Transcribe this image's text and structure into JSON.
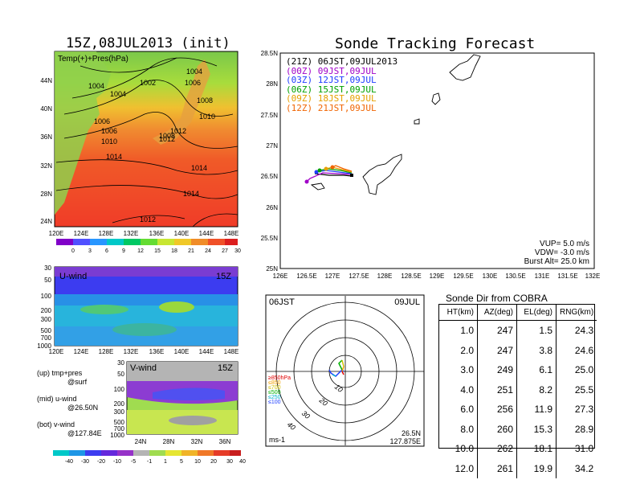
{
  "map_panel": {
    "title": "15Z,08JUL2013 (init)",
    "label": "Temp(+)+Pres(hPa)",
    "lat_ticks": [
      "44N",
      "40N",
      "36N",
      "32N",
      "28N",
      "24N"
    ],
    "lon_ticks": [
      "120E",
      "124E",
      "128E",
      "132E",
      "136E",
      "140E",
      "144E",
      "148E"
    ],
    "colorbar_ticks": [
      "0",
      "3",
      "6",
      "9",
      "12",
      "15",
      "18",
      "21",
      "24",
      "27",
      "30"
    ],
    "pressure_labels": [
      "1004",
      "1006",
      "1002",
      "1004",
      "1004",
      "1006",
      "1008",
      "1006",
      "1010",
      "1008",
      "1010",
      "1012",
      "1012",
      "1014",
      "1014",
      "1014",
      "1012"
    ]
  },
  "u_panel": {
    "label": "U-wind",
    "time": "15Z",
    "y_ticks": [
      "30",
      "50",
      "100",
      "200",
      "300",
      "500",
      "700",
      "1000"
    ],
    "x_ticks": [
      "120E",
      "124E",
      "128E",
      "132E",
      "136E",
      "140E",
      "144E",
      "148E"
    ]
  },
  "v_panel": {
    "label": "V-wind",
    "time": "15Z",
    "y_ticks": [
      "30",
      "50",
      "100",
      "200",
      "300",
      "500",
      "700",
      "1000"
    ],
    "x_ticks": [
      "24N",
      "28N",
      "32N",
      "36N"
    ],
    "colorbar_ticks": [
      "-40",
      "-30",
      "-20",
      "-10",
      "-5",
      "-1",
      "1",
      "5",
      "10",
      "20",
      "30",
      "40"
    ]
  },
  "legend_text": {
    "up": "(up) tmp+pres",
    "up2": "@surf",
    "mid": "(mid) u-wind",
    "mid2": "@26.50N",
    "bot": "(bot) v-wind",
    "bot2": "@127.84E"
  },
  "track_panel": {
    "title": "Sonde Tracking Forecast",
    "lat_ticks": [
      "28.5N",
      "28N",
      "27.5N",
      "27N",
      "26.5N",
      "26N",
      "25.5N",
      "25N"
    ],
    "lon_ticks": [
      "126E",
      "126.5E",
      "127E",
      "127.5E",
      "128E",
      "128.5E",
      "129E",
      "129.5E",
      "130E",
      "130.5E",
      "131E",
      "131.5E",
      "132E"
    ],
    "legend": [
      {
        "label": "(21Z) 06JST,09JUL2013",
        "color": "#000000"
      },
      {
        "label": "(00Z) 09JST,09JUL",
        "color": "#a000c8"
      },
      {
        "label": "(03Z) 12JST,09JUL",
        "color": "#1e3cff"
      },
      {
        "label": "(06Z) 15JST,09JUL",
        "color": "#00a000"
      },
      {
        "label": "(09Z) 18JST,09JUL",
        "color": "#e6a000"
      },
      {
        "label": "(12Z) 21JST,09JUL",
        "color": "#f06400"
      }
    ],
    "params": [
      "VUP= 5.0 m/s",
      "VDW= -3.0 m/s",
      "Burst Alt= 25.0 km"
    ]
  },
  "hodo_panel": {
    "time_left": "06JST",
    "date_right": "09JUL",
    "ring_labels": [
      "10",
      "20",
      "30",
      "40"
    ],
    "legend": [
      {
        "label": "≥850hPa",
        "color": "#e00000"
      },
      {
        "label": "≤850",
        "color": "#f0a000"
      },
      {
        "label": "≤700",
        "color": "#d0c000"
      },
      {
        "label": "≤500",
        "color": "#00b000"
      },
      {
        "label": "≤250",
        "color": "#00b0d0"
      },
      {
        "label": "≤100",
        "color": "#2040ff"
      }
    ],
    "unit": "ms-1",
    "lat": "26.5N",
    "lon": "127.875E"
  },
  "dir_table": {
    "title": "Sonde Dir from COBRA",
    "headers": [
      "HT(km)",
      "AZ(deg)",
      "EL(deg)",
      "RNG(km)"
    ],
    "rows": [
      [
        "1.0",
        "247",
        "1.5",
        "24.3"
      ],
      [
        "2.0",
        "247",
        "3.8",
        "24.6"
      ],
      [
        "3.0",
        "249",
        "6.1",
        "25.0"
      ],
      [
        "4.0",
        "251",
        "8.2",
        "25.5"
      ],
      [
        "6.0",
        "256",
        "11.9",
        "27.3"
      ],
      [
        "8.0",
        "260",
        "15.3",
        "28.9"
      ],
      [
        "10.0",
        "262",
        "18.1",
        "31.0"
      ],
      [
        "12.0",
        "261",
        "19.9",
        "34.2"
      ]
    ]
  }
}
